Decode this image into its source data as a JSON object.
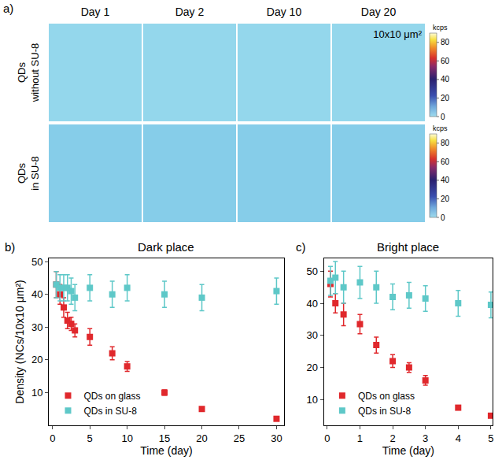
{
  "images": {
    "label": "a)",
    "columns": [
      "Day 1",
      "Day 2",
      "Day 10",
      "Day 20"
    ],
    "rows": [
      "QDs without SU-8",
      "QDs in SU-8"
    ],
    "scale_label": "10x10 μm²",
    "colorbar": {
      "title": "kcps",
      "range": [
        0,
        90
      ],
      "ticks": [
        0,
        20,
        40,
        60,
        80
      ]
    }
  },
  "chart_data": [
    {
      "type": "scatter",
      "label": "b)",
      "title": "Dark place",
      "x_label": "Time (day)",
      "y_label": "Density (NCs/10x10 μm²)",
      "xlim": [
        -0.5,
        31
      ],
      "xticks": [
        0,
        5,
        10,
        15,
        20,
        25,
        30
      ],
      "ylim": [
        0,
        51
      ],
      "yticks": [
        10,
        20,
        30,
        40,
        50
      ],
      "legend": "lower left",
      "marker": "square",
      "x": [
        0.5,
        1,
        1.5,
        2,
        2.5,
        3,
        5,
        8,
        10,
        15,
        20,
        30
      ],
      "series": [
        {
          "name": "QDs on glass",
          "color": "#e0282c",
          "values": [
            43,
            40,
            36,
            32,
            31,
            29,
            27,
            22,
            18,
            10,
            5,
            2
          ],
          "errors": [
            4,
            3,
            3,
            2.5,
            2,
            2,
            2.5,
            2,
            1.5,
            0.8,
            0.5,
            0.3
          ]
        },
        {
          "name": "QDs in SU-8",
          "color": "#5ec8c8",
          "values": [
            43,
            42,
            42,
            42,
            41,
            39,
            42,
            40,
            42,
            40,
            39,
            41
          ],
          "errors": [
            4,
            4,
            4,
            4,
            4,
            4,
            4,
            4,
            4,
            4,
            4,
            4
          ]
        }
      ]
    },
    {
      "type": "scatter",
      "label": "c)",
      "title": "Bright place",
      "x_label": "Time (day)",
      "xlim": [
        -0.1,
        5.05
      ],
      "xticks": [
        0,
        1,
        2,
        3,
        4,
        5
      ],
      "ylim": [
        2,
        54
      ],
      "yticks": [
        10,
        20,
        30,
        40,
        50
      ],
      "legend": "lower left",
      "marker": "square",
      "x": [
        0.1,
        0.25,
        0.5,
        1,
        1.5,
        2,
        2.5,
        3,
        4,
        5
      ],
      "series": [
        {
          "name": "QDs on glass",
          "color": "#e0282c",
          "values": [
            46,
            40,
            36.5,
            33.5,
            27,
            22,
            20,
            16,
            7.5,
            5
          ],
          "errors": [
            4,
            3,
            3.5,
            3,
            2.5,
            2,
            1.5,
            1.5,
            0.5,
            0.3
          ]
        },
        {
          "name": "QDs in SU-8",
          "color": "#5ec8c8",
          "values": [
            47,
            48,
            45,
            46.5,
            45,
            42,
            42.5,
            41.5,
            40,
            39.5
          ],
          "errors": [
            4.5,
            5,
            5,
            5,
            5,
            4,
            4,
            4,
            4,
            4
          ]
        }
      ]
    }
  ]
}
